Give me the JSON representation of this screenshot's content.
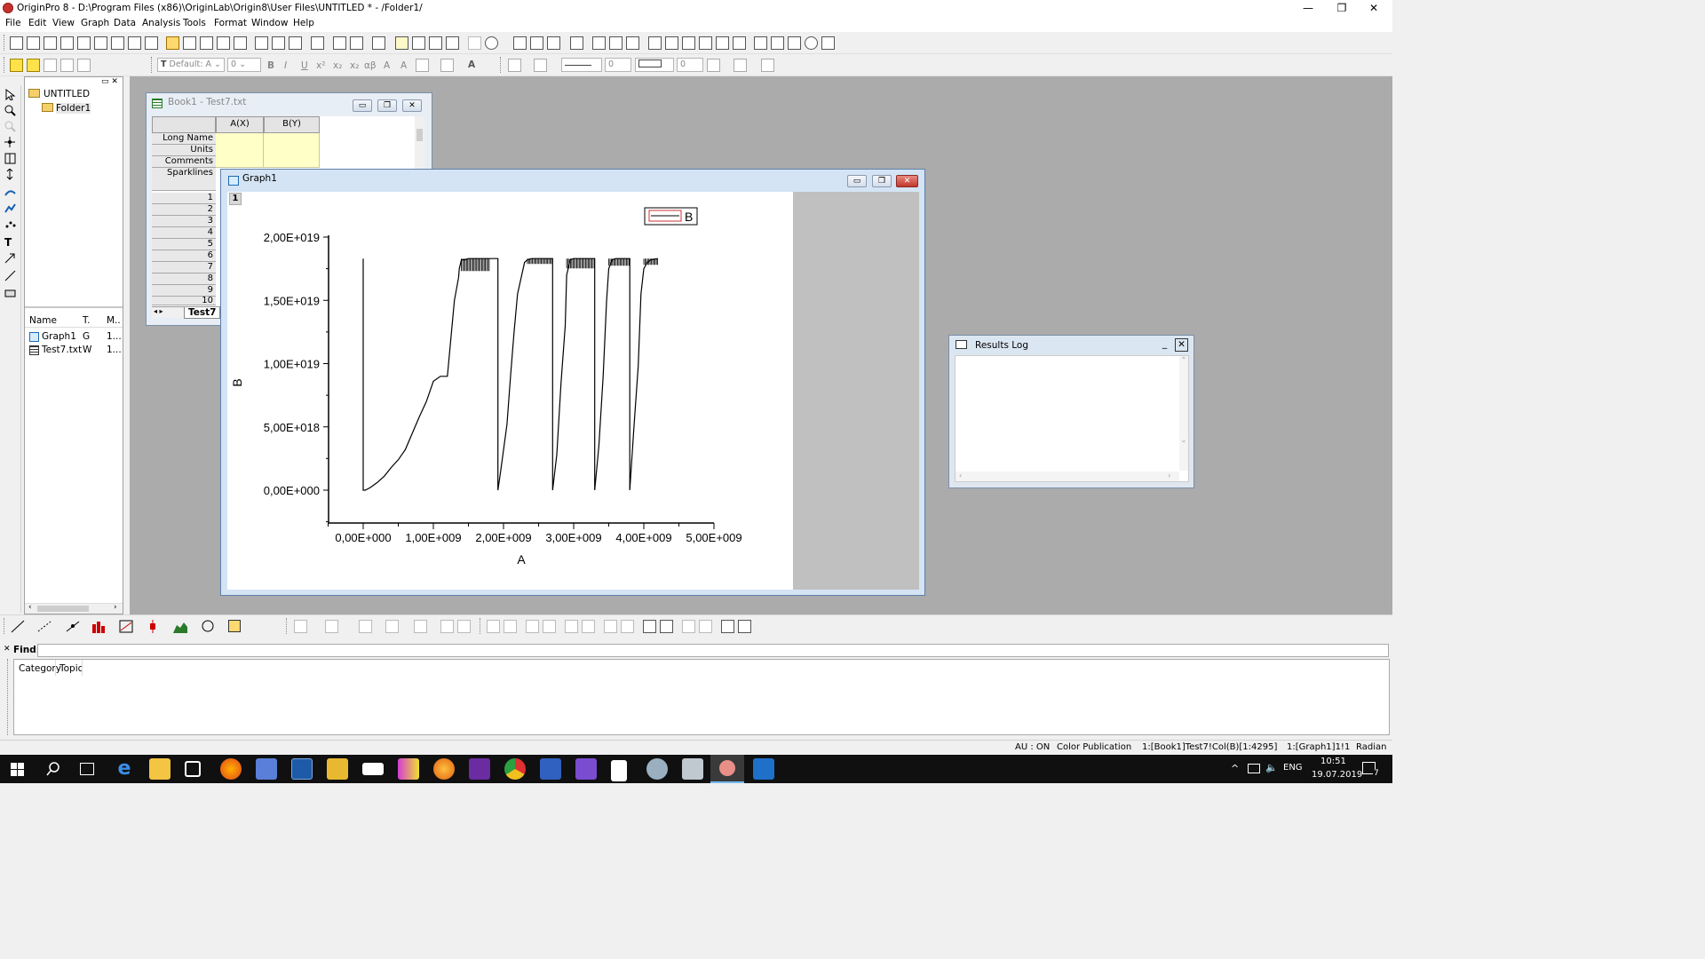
{
  "window": {
    "title": "OriginPro 8 - D:\\Program Files (x86)\\OriginLab\\Origin8\\User Files\\UNTITLED * - /Folder1/",
    "minimize": "—",
    "maximize": "❐",
    "close": "✕"
  },
  "menu": [
    "File",
    "Edit",
    "View",
    "Graph",
    "Data",
    "Analysis",
    "Tools",
    "Format",
    "Window",
    "Help"
  ],
  "format_toolbar": {
    "font": "Default: A",
    "font_size": "0",
    "bold": "B",
    "italic": "I",
    "underline": "U",
    "superscript": "x²",
    "subscript": "x₂",
    "greek": "αβ",
    "grow_font": "A",
    "shrink_font": "A",
    "line_width": "0",
    "fill_width": "0"
  },
  "project_explorer": {
    "root": "UNTITLED",
    "folder": "Folder1",
    "columns": [
      "Name",
      "T.",
      "M.."
    ],
    "items": [
      {
        "name": "Graph1",
        "type": "G",
        "modified": "1..."
      },
      {
        "name": "Test7.txt",
        "type": "W",
        "modified": "1..."
      }
    ]
  },
  "workbook": {
    "title": "Book1 - Test7.txt",
    "columns": [
      "A(X)",
      "B(Y)"
    ],
    "row_labels": [
      "Long Name",
      "Units",
      "Comments",
      "Sparklines"
    ],
    "rows": [
      "1",
      "2",
      "3",
      "4",
      "5",
      "6",
      "7",
      "8",
      "9",
      "10"
    ],
    "sheet_tab": "Test7"
  },
  "graph_window": {
    "title": "Graph1",
    "layer_label": "1",
    "legend": "B"
  },
  "chart_data": {
    "type": "line",
    "xlabel": "A",
    "ylabel": "B",
    "xlim": [
      0,
      5000000000
    ],
    "ylim": [
      0,
      20000000000000000000
    ],
    "x_ticks": [
      "0,00E+000",
      "1,00E+009",
      "2,00E+009",
      "3,00E+009",
      "4,00E+009",
      "5,00E+009"
    ],
    "y_ticks": [
      "0,00E+000",
      "5,00E+018",
      "1,00E+019",
      "1,50E+019",
      "2,00E+019"
    ],
    "series": [
      {
        "name": "B",
        "color": "#000000",
        "x": [
          0,
          0,
          30000000,
          100000000,
          200000000,
          300000000,
          400000000,
          500000000,
          600000000,
          700000000,
          800000000,
          900000000,
          1000000000,
          1100000000,
          1200000000,
          1300000000,
          1360000000,
          1370000000,
          1400000000,
          1450000000,
          1500000000,
          1600000000,
          1700000000,
          1800000000,
          1920000000,
          1920000000,
          1960000000,
          2050000000,
          2100000000,
          2150000000,
          2200000000,
          2300000000,
          2340000000,
          2400000000,
          2450000000,
          2500000000,
          2600000000,
          2700000000,
          2700000000,
          2760000000,
          2820000000,
          2880000000,
          2900000000,
          2950000000,
          3000000000,
          3050000000,
          3100000000,
          3300000000,
          3300000000,
          3360000000,
          3420000000,
          3470000000,
          3500000000,
          3550000000,
          3600000000,
          3620000000,
          3650000000,
          3800000000,
          3800000000,
          3860000000,
          3920000000,
          3960000000,
          4000000000,
          4050000000,
          4100000000,
          4200000000
        ],
        "y": [
          18300000000000000000,
          0,
          0,
          200000000000000000,
          600000000000000000,
          1100000000000000000,
          1800000000000000000,
          2400000000000000000,
          3200000000000000000,
          4500000000000000000,
          5800000000000000000,
          7000000000000000000,
          8600000000000000000,
          9000000000000000000,
          9000000000000000000,
          15000000000000000000,
          16800000000000000000,
          17500000000000000000,
          18200000000000000000,
          18200000000000000000,
          18300000000000000000,
          18300000000000000000,
          18300000000000000000,
          18300000000000000000,
          18300000000000000000,
          0,
          1500000000000000000,
          5200000000000000000,
          9000000000000000000,
          12500000000000000000,
          15500000000000000000,
          18000000000000000000,
          18200000000000000000,
          18300000000000000000,
          18300000000000000000,
          18300000000000000000,
          18300000000000000000,
          18300000000000000000,
          0,
          2800000000000000000,
          8500000000000000000,
          13000000000000000000,
          17000000000000000000,
          18200000000000000000,
          18300000000000000000,
          18300000000000000000,
          18300000000000000000,
          18300000000000000000,
          0,
          3500000000000000000,
          9000000000000000000,
          15000000000000000000,
          17500000000000000000,
          18200000000000000000,
          18300000000000000000,
          18300000000000000000,
          18300000000000000000,
          18300000000000000000,
          0,
          5000000000000000000,
          9800000000000000000,
          15500000000000000000,
          17500000000000000000,
          18000000000000000000,
          18200000000000000000,
          18300000000000000000
        ]
      }
    ]
  },
  "results_log": {
    "title": "Results Log"
  },
  "find_panel": {
    "label": "Find:",
    "value": "",
    "columns": [
      "Category",
      "Topic"
    ]
  },
  "statusbar": {
    "au": "AU : ON",
    "theme": "Color Publication",
    "cell": "1:[Book1]Test7!Col(B)[1:4295]",
    "layer": "1:[Graph1]1!1",
    "angle": "Radian"
  },
  "taskbar": {
    "lang": "ENG",
    "time": "10:51",
    "date": "19.07.2019",
    "notifications": "7"
  }
}
